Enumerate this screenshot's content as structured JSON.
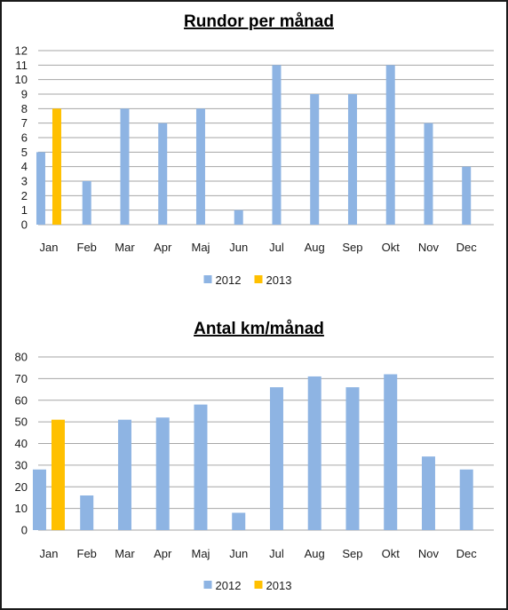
{
  "chart_data": [
    {
      "type": "bar",
      "title": "Rundor per månad",
      "xlabel": "",
      "ylabel": "",
      "ylim": [
        0,
        12
      ],
      "yticks": [
        0,
        1,
        2,
        3,
        4,
        5,
        6,
        7,
        8,
        9,
        10,
        11,
        12
      ],
      "grid": true,
      "legend_position": "bottom",
      "categories": [
        "Jan",
        "Feb",
        "Mar",
        "Apr",
        "Maj",
        "Jun",
        "Jul",
        "Aug",
        "Sep",
        "Okt",
        "Nov",
        "Dec"
      ],
      "series": [
        {
          "name": "2012",
          "color": "#8eb4e3",
          "values": [
            5,
            3,
            8,
            7,
            8,
            1,
            11,
            9,
            9,
            11,
            7,
            4
          ]
        },
        {
          "name": "2013",
          "color": "#ffc000",
          "values": [
            8,
            null,
            null,
            null,
            null,
            null,
            null,
            null,
            null,
            null,
            null,
            null
          ]
        }
      ]
    },
    {
      "type": "bar",
      "title": "Antal km/månad",
      "xlabel": "",
      "ylabel": "",
      "ylim": [
        0,
        80
      ],
      "yticks": [
        0,
        10,
        20,
        30,
        40,
        50,
        60,
        70,
        80
      ],
      "grid": true,
      "legend_position": "bottom",
      "categories": [
        "Jan",
        "Feb",
        "Mar",
        "Apr",
        "Maj",
        "Jun",
        "Jul",
        "Aug",
        "Sep",
        "Okt",
        "Nov",
        "Dec"
      ],
      "series": [
        {
          "name": "2012",
          "color": "#8eb4e3",
          "values": [
            28,
            16,
            51,
            52,
            58,
            8,
            66,
            71,
            66,
            72,
            34,
            28
          ]
        },
        {
          "name": "2013",
          "color": "#ffc000",
          "values": [
            51,
            null,
            null,
            null,
            null,
            null,
            null,
            null,
            null,
            null,
            null,
            null
          ]
        }
      ]
    }
  ],
  "colors": {
    "gridline": "#a6a6a6",
    "border": "#1a1a1a"
  }
}
